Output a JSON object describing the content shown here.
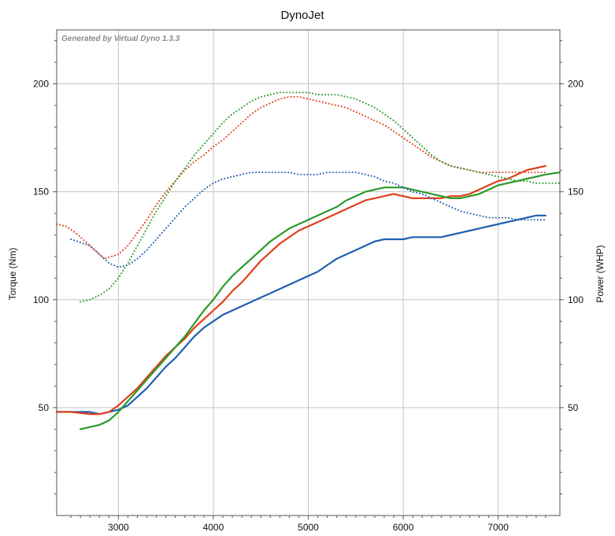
{
  "chart_data": {
    "type": "line",
    "title": "DynoJet",
    "watermark": "Generated by Virtual Dyno 1.3.3",
    "xlabel": "",
    "ylabel": "Torque (Nm)",
    "y2label": "Power (WHP)",
    "xlim": [
      2350,
      7650
    ],
    "ylim": [
      0,
      225
    ],
    "y2lim": [
      0,
      225
    ],
    "x_ticks": [
      3000,
      4000,
      5000,
      6000,
      7000
    ],
    "y_ticks": [
      50,
      100,
      150,
      200
    ],
    "y2_ticks": [
      50,
      100,
      150,
      200
    ],
    "grid": true,
    "series": [
      {
        "name": "Torque (blue)",
        "color": "#1f5fb0",
        "style": "solid",
        "x": [
          2350,
          2500,
          2700,
          2800,
          2900,
          3000,
          3100,
          3200,
          3300,
          3400,
          3500,
          3600,
          3700,
          3800,
          3900,
          4000,
          4100,
          4200,
          4300,
          4400,
          4500,
          4600,
          4700,
          4800,
          4900,
          5000,
          5100,
          5200,
          5300,
          5400,
          5500,
          5600,
          5700,
          5800,
          5900,
          6000,
          6100,
          6200,
          6300,
          6400,
          6500,
          6600,
          6700,
          6800,
          6900,
          7000,
          7100,
          7200,
          7300,
          7400,
          7500
        ],
        "values": [
          48,
          48,
          48,
          47,
          48,
          49,
          51,
          55,
          59,
          64,
          69,
          73,
          78,
          83,
          87,
          90,
          93,
          95,
          97,
          99,
          101,
          103,
          105,
          107,
          109,
          111,
          113,
          116,
          119,
          121,
          123,
          125,
          127,
          128,
          128,
          128,
          129,
          129,
          129,
          129,
          130,
          131,
          132,
          133,
          134,
          135,
          136,
          137,
          138,
          139,
          139
        ]
      },
      {
        "name": "Torque (red)",
        "color": "#e0401c",
        "style": "solid",
        "x": [
          2350,
          2500,
          2700,
          2800,
          2900,
          3000,
          3100,
          3200,
          3300,
          3400,
          3500,
          3600,
          3700,
          3800,
          3900,
          4000,
          4100,
          4200,
          4300,
          4400,
          4500,
          4600,
          4700,
          4800,
          4900,
          5000,
          5100,
          5200,
          5300,
          5400,
          5500,
          5600,
          5700,
          5800,
          5900,
          6000,
          6100,
          6200,
          6300,
          6400,
          6500,
          6600,
          6700,
          6800,
          6900,
          7000,
          7100,
          7200,
          7300,
          7400,
          7500
        ],
        "values": [
          48,
          48,
          47,
          47,
          48,
          51,
          55,
          59,
          64,
          69,
          74,
          78,
          82,
          87,
          91,
          95,
          99,
          104,
          108,
          113,
          118,
          122,
          126,
          129,
          132,
          134,
          136,
          138,
          140,
          142,
          144,
          146,
          147,
          148,
          149,
          148,
          147,
          147,
          147,
          147,
          148,
          148,
          149,
          151,
          153,
          155,
          156,
          158,
          160,
          161,
          162
        ]
      },
      {
        "name": "Torque (green)",
        "color": "#2a9a2a",
        "style": "solid",
        "x": [
          2600,
          2700,
          2800,
          2900,
          3000,
          3100,
          3200,
          3300,
          3400,
          3500,
          3600,
          3700,
          3800,
          3900,
          4000,
          4100,
          4200,
          4300,
          4400,
          4500,
          4600,
          4700,
          4800,
          4900,
          5000,
          5100,
          5200,
          5300,
          5400,
          5500,
          5600,
          5700,
          5800,
          5900,
          6000,
          6100,
          6200,
          6300,
          6400,
          6500,
          6600,
          6700,
          6800,
          6900,
          7000,
          7100,
          7200,
          7300,
          7400,
          7500,
          7650
        ],
        "values": [
          40,
          41,
          42,
          44,
          48,
          53,
          58,
          63,
          68,
          73,
          78,
          83,
          89,
          95,
          100,
          106,
          111,
          115,
          119,
          123,
          127,
          130,
          133,
          135,
          137,
          139,
          141,
          143,
          146,
          148,
          150,
          151,
          152,
          152,
          152,
          151,
          150,
          149,
          148,
          147,
          147,
          148,
          149,
          151,
          153,
          154,
          155,
          156,
          157,
          158,
          159
        ]
      },
      {
        "name": "Power (blue)",
        "color": "#1f5fb0",
        "style": "dotted",
        "x": [
          2500,
          2700,
          2800,
          2900,
          3000,
          3100,
          3200,
          3300,
          3400,
          3500,
          3600,
          3700,
          3800,
          3900,
          4000,
          4100,
          4200,
          4300,
          4400,
          4500,
          4600,
          4700,
          4800,
          4900,
          5000,
          5100,
          5200,
          5300,
          5400,
          5500,
          5600,
          5700,
          5800,
          5900,
          6000,
          6100,
          6200,
          6300,
          6400,
          6500,
          6600,
          6700,
          6800,
          6900,
          7000,
          7100,
          7200,
          7300,
          7400,
          7500
        ],
        "values": [
          128,
          125,
          121,
          117,
          115,
          116,
          119,
          123,
          128,
          133,
          138,
          143,
          147,
          151,
          154,
          156,
          157,
          158,
          159,
          159,
          159,
          159,
          159,
          158,
          158,
          158,
          159,
          159,
          159,
          159,
          158,
          157,
          155,
          154,
          152,
          150,
          149,
          147,
          145,
          143,
          141,
          140,
          139,
          138,
          138,
          138,
          137,
          137,
          137,
          137
        ]
      },
      {
        "name": "Power (red)",
        "color": "#e0401c",
        "style": "dotted",
        "x": [
          2350,
          2450,
          2550,
          2650,
          2750,
          2850,
          3000,
          3100,
          3200,
          3300,
          3400,
          3500,
          3600,
          3700,
          3800,
          3900,
          4000,
          4100,
          4200,
          4300,
          4400,
          4500,
          4600,
          4700,
          4800,
          4900,
          5000,
          5100,
          5200,
          5300,
          5400,
          5500,
          5600,
          5700,
          5800,
          5900,
          6000,
          6100,
          6200,
          6300,
          6400,
          6500,
          6600,
          6700,
          6800,
          6900,
          7000,
          7100,
          7200,
          7300,
          7400,
          7500
        ],
        "values": [
          135,
          134,
          131,
          127,
          123,
          119,
          121,
          125,
          131,
          137,
          144,
          150,
          155,
          160,
          164,
          167,
          171,
          174,
          178,
          182,
          186,
          189,
          191,
          193,
          194,
          194,
          193,
          192,
          191,
          190,
          189,
          187,
          185,
          183,
          181,
          178,
          175,
          172,
          169,
          166,
          164,
          162,
          161,
          160,
          159,
          159,
          159,
          159,
          159,
          159,
          159,
          159
        ]
      },
      {
        "name": "Power (green)",
        "color": "#2a9a2a",
        "style": "dotted",
        "x": [
          2600,
          2700,
          2800,
          2900,
          3000,
          3100,
          3200,
          3300,
          3400,
          3500,
          3600,
          3700,
          3800,
          3900,
          4000,
          4100,
          4200,
          4300,
          4400,
          4500,
          4600,
          4700,
          4800,
          4900,
          5000,
          5100,
          5200,
          5300,
          5400,
          5500,
          5600,
          5700,
          5800,
          5900,
          6000,
          6100,
          6200,
          6300,
          6400,
          6500,
          6600,
          6700,
          6800,
          6900,
          7000,
          7100,
          7200,
          7300,
          7400,
          7500,
          7650
        ],
        "values": [
          99,
          100,
          102,
          105,
          110,
          117,
          125,
          133,
          141,
          148,
          155,
          161,
          167,
          172,
          177,
          182,
          186,
          189,
          192,
          194,
          195,
          196,
          196,
          196,
          196,
          195,
          195,
          195,
          194,
          193,
          191,
          189,
          186,
          183,
          179,
          175,
          171,
          167,
          164,
          162,
          161,
          160,
          159,
          158,
          157,
          156,
          155,
          155,
          154,
          154,
          154
        ]
      }
    ]
  }
}
